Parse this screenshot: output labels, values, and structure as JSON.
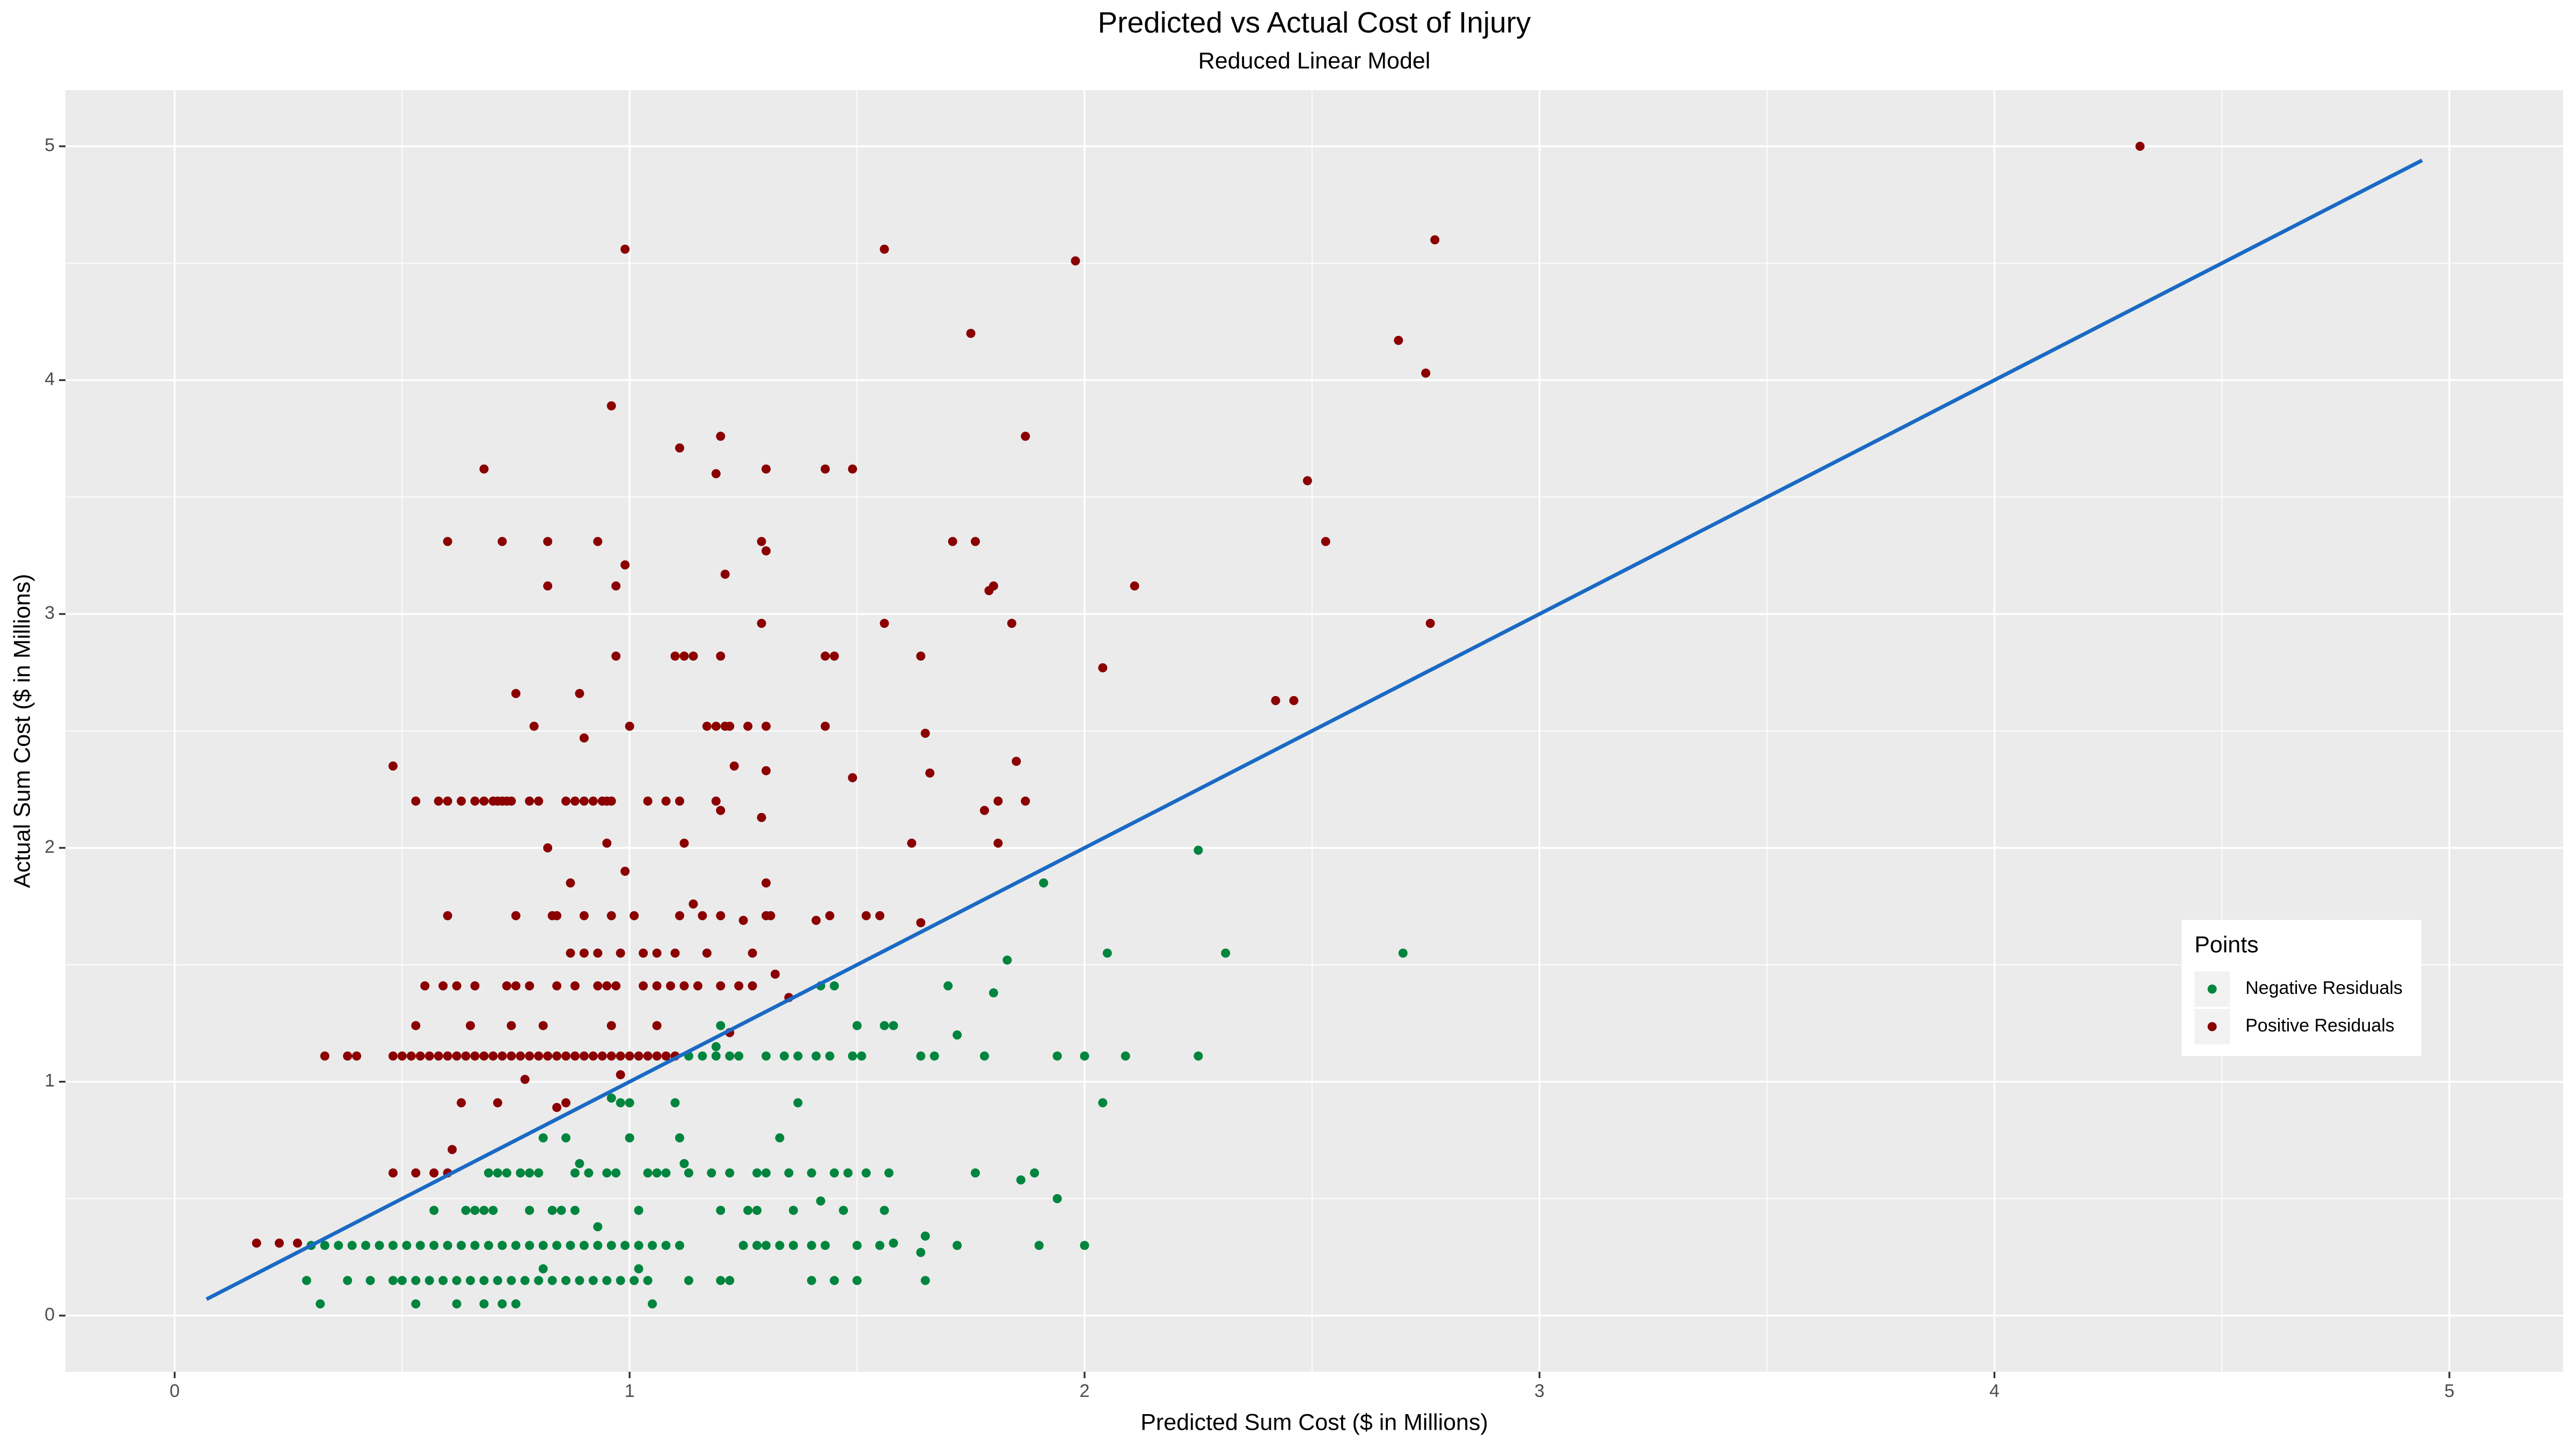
{
  "chart_data": {
    "type": "scatter",
    "title": "Predicted vs Actual Cost of Injury",
    "subtitle": "Reduced Linear Model",
    "x_label": "Predicted Sum Cost ($ in Millions)",
    "y_label": "Actual Sum Cost ($ in Millions)",
    "xlim": [
      -0.24,
      5.25
    ],
    "ylim": [
      -0.24,
      5.24
    ],
    "xticks": [
      0,
      1,
      2,
      3,
      4,
      5
    ],
    "yticks": [
      0,
      1,
      2,
      3,
      4,
      5
    ],
    "grid": true,
    "minor_grid": true,
    "legend_title": "Points",
    "legend_position": "right",
    "reference_line": {
      "color": "#1a6ac4",
      "x": [
        0.07,
        4.94
      ],
      "y": [
        0.07,
        4.94
      ]
    },
    "series": [
      {
        "name": "Negative Residuals",
        "color": "#00853e",
        "x": [
          2.25,
          1.91,
          2.05,
          2.31,
          2.7,
          1.83,
          1.7,
          1.8,
          1.42,
          1.45,
          1.5,
          1.56,
          1.58,
          1.72,
          1.2,
          1.19,
          2.04,
          1.37,
          0.96,
          0.98,
          1.0,
          1.1,
          0.81,
          0.86,
          1.0,
          1.11,
          1.33,
          0.89,
          1.12,
          1.94,
          1.86,
          1.42,
          0.93,
          1.65,
          1.58,
          0.81,
          1.02,
          0.32,
          0.53,
          0.62,
          0.68,
          0.72,
          0.75,
          1.05,
          1.64,
          1.13,
          1.16,
          1.19,
          1.22,
          1.24,
          1.3,
          1.34,
          1.37,
          1.41,
          1.44,
          1.49,
          1.51,
          1.64,
          1.67,
          1.78,
          1.94,
          2.0,
          2.09,
          2.25,
          0.69,
          0.71,
          0.73,
          0.76,
          0.78,
          0.8,
          0.88,
          0.91,
          0.95,
          0.97,
          1.04,
          1.06,
          1.08,
          1.13,
          1.18,
          1.22,
          1.28,
          1.3,
          1.35,
          1.4,
          1.45,
          1.48,
          1.52,
          1.57,
          1.76,
          1.89,
          0.57,
          0.64,
          0.66,
          0.68,
          0.7,
          0.78,
          0.83,
          0.85,
          0.88,
          1.02,
          1.2,
          1.26,
          1.28,
          1.36,
          1.47,
          1.56,
          0.3,
          0.33,
          0.36,
          0.39,
          0.42,
          0.45,
          0.48,
          0.51,
          0.54,
          0.57,
          0.6,
          0.63,
          0.66,
          0.69,
          0.72,
          0.75,
          0.78,
          0.81,
          0.84,
          0.87,
          0.9,
          0.93,
          0.96,
          0.99,
          1.02,
          1.05,
          1.08,
          1.11,
          1.25,
          1.28,
          1.3,
          1.33,
          1.36,
          1.4,
          1.43,
          1.5,
          1.55,
          1.72,
          1.9,
          2.0,
          0.29,
          0.38,
          0.43,
          0.48,
          0.5,
          0.53,
          0.56,
          0.59,
          0.62,
          0.65,
          0.68,
          0.71,
          0.74,
          0.77,
          0.8,
          0.83,
          0.86,
          0.89,
          0.92,
          0.95,
          0.98,
          1.01,
          1.04,
          1.13,
          1.2,
          1.22,
          1.4,
          1.45,
          1.5,
          1.65
        ],
        "y": [
          1.99,
          1.85,
          1.55,
          1.55,
          1.55,
          1.52,
          1.41,
          1.38,
          1.41,
          1.41,
          1.24,
          1.24,
          1.24,
          1.2,
          1.24,
          1.15,
          0.91,
          0.91,
          0.93,
          0.91,
          0.91,
          0.91,
          0.76,
          0.76,
          0.76,
          0.76,
          0.76,
          0.65,
          0.65,
          0.5,
          0.58,
          0.49,
          0.38,
          0.34,
          0.31,
          0.2,
          0.2,
          0.05,
          0.05,
          0.05,
          0.05,
          0.05,
          0.05,
          0.05,
          0.27,
          1.11,
          1.11,
          1.11,
          1.11,
          1.11,
          1.11,
          1.11,
          1.11,
          1.11,
          1.11,
          1.11,
          1.11,
          1.11,
          1.11,
          1.11,
          1.11,
          1.11,
          1.11,
          1.11,
          0.61,
          0.61,
          0.61,
          0.61,
          0.61,
          0.61,
          0.61,
          0.61,
          0.61,
          0.61,
          0.61,
          0.61,
          0.61,
          0.61,
          0.61,
          0.61,
          0.61,
          0.61,
          0.61,
          0.61,
          0.61,
          0.61,
          0.61,
          0.61,
          0.61,
          0.61,
          0.45,
          0.45,
          0.45,
          0.45,
          0.45,
          0.45,
          0.45,
          0.45,
          0.45,
          0.45,
          0.45,
          0.45,
          0.45,
          0.45,
          0.45,
          0.45,
          0.3,
          0.3,
          0.3,
          0.3,
          0.3,
          0.3,
          0.3,
          0.3,
          0.3,
          0.3,
          0.3,
          0.3,
          0.3,
          0.3,
          0.3,
          0.3,
          0.3,
          0.3,
          0.3,
          0.3,
          0.3,
          0.3,
          0.3,
          0.3,
          0.3,
          0.3,
          0.3,
          0.3,
          0.3,
          0.3,
          0.3,
          0.3,
          0.3,
          0.3,
          0.3,
          0.3,
          0.3,
          0.3,
          0.3,
          0.3,
          0.15,
          0.15,
          0.15,
          0.15,
          0.15,
          0.15,
          0.15,
          0.15,
          0.15,
          0.15,
          0.15,
          0.15,
          0.15,
          0.15,
          0.15,
          0.15,
          0.15,
          0.15,
          0.15,
          0.15,
          0.15,
          0.15,
          0.15,
          0.15,
          0.15,
          0.15,
          0.15,
          0.15,
          0.15,
          0.15
        ]
      },
      {
        "name": "Positive Residuals",
        "color": "#8b0000",
        "x": [
          4.32,
          0.99,
          1.56,
          1.98,
          2.77,
          1.75,
          2.69,
          2.75,
          0.96,
          1.2,
          1.87,
          1.11,
          0.68,
          1.19,
          1.3,
          1.43,
          1.49,
          2.49,
          2.53,
          1.3,
          0.99,
          0.82,
          0.97,
          1.21,
          1.79,
          1.8,
          2.11,
          2.04,
          0.75,
          0.89,
          2.42,
          2.46,
          0.9,
          0.48,
          1.23,
          1.3,
          1.49,
          1.66,
          1.85,
          1.65,
          1.29,
          1.2,
          1.78,
          0.82,
          0.95,
          1.12,
          1.62,
          1.81,
          0.99,
          0.87,
          1.3,
          1.14,
          1.64,
          1.25,
          1.41,
          1.32,
          1.35,
          1.22,
          0.63,
          0.71,
          0.77,
          0.86,
          0.98,
          0.61,
          0.18,
          0.23,
          0.27,
          0.33,
          0.38,
          0.4,
          0.48,
          0.84,
          0.6,
          0.72,
          0.82,
          0.93,
          1.29,
          1.71,
          1.76,
          1.29,
          1.56,
          1.84,
          2.76,
          0.97,
          1.1,
          1.12,
          1.14,
          1.2,
          1.43,
          1.45,
          1.64,
          0.79,
          1.0,
          1.17,
          1.19,
          1.21,
          1.22,
          1.26,
          1.3,
          1.43,
          0.53,
          0.58,
          0.6,
          0.63,
          0.66,
          0.68,
          0.7,
          0.71,
          0.72,
          0.73,
          0.74,
          0.78,
          0.8,
          0.86,
          0.88,
          0.9,
          0.92,
          0.94,
          0.95,
          0.96,
          1.04,
          1.08,
          1.11,
          1.19,
          1.81,
          1.87,
          0.6,
          0.75,
          0.83,
          0.84,
          0.9,
          0.96,
          1.01,
          1.11,
          1.16,
          1.2,
          1.3,
          1.31,
          1.44,
          1.52,
          1.55,
          0.87,
          0.9,
          0.93,
          0.98,
          1.03,
          1.06,
          1.1,
          1.17,
          1.27,
          0.55,
          0.59,
          0.62,
          0.66,
          0.73,
          0.75,
          0.78,
          0.84,
          0.88,
          0.93,
          0.95,
          0.97,
          1.03,
          1.06,
          1.09,
          1.12,
          1.15,
          1.2,
          1.24,
          1.27,
          0.53,
          0.65,
          0.74,
          0.81,
          0.96,
          1.06,
          0.5,
          0.52,
          0.54,
          0.56,
          0.58,
          0.6,
          0.62,
          0.64,
          0.66,
          0.68,
          0.7,
          0.72,
          0.74,
          0.76,
          0.78,
          0.8,
          0.82,
          0.84,
          0.86,
          0.88,
          0.9,
          0.92,
          0.94,
          0.96,
          0.98,
          1.0,
          1.02,
          1.04,
          1.06,
          1.08,
          1.1,
          0.48,
          0.53,
          0.57,
          0.6
        ],
        "y": [
          5.0,
          4.56,
          4.56,
          4.51,
          4.6,
          4.2,
          4.17,
          4.03,
          3.89,
          3.76,
          3.76,
          3.71,
          3.62,
          3.6,
          3.62,
          3.62,
          3.62,
          3.57,
          3.31,
          3.27,
          3.21,
          3.12,
          3.12,
          3.17,
          3.1,
          3.12,
          3.12,
          2.77,
          2.66,
          2.66,
          2.63,
          2.63,
          2.47,
          2.35,
          2.35,
          2.33,
          2.3,
          2.32,
          2.37,
          2.49,
          2.13,
          2.16,
          2.16,
          2.0,
          2.02,
          2.02,
          2.02,
          2.02,
          1.9,
          1.85,
          1.85,
          1.76,
          1.68,
          1.69,
          1.69,
          1.46,
          1.36,
          1.21,
          0.91,
          0.91,
          1.01,
          0.91,
          1.03,
          0.71,
          0.31,
          0.31,
          0.31,
          1.11,
          1.11,
          1.11,
          1.11,
          0.89,
          3.31,
          3.31,
          3.31,
          3.31,
          3.31,
          3.31,
          3.31,
          2.96,
          2.96,
          2.96,
          2.96,
          2.82,
          2.82,
          2.82,
          2.82,
          2.82,
          2.82,
          2.82,
          2.82,
          2.52,
          2.52,
          2.52,
          2.52,
          2.52,
          2.52,
          2.52,
          2.52,
          2.52,
          2.2,
          2.2,
          2.2,
          2.2,
          2.2,
          2.2,
          2.2,
          2.2,
          2.2,
          2.2,
          2.2,
          2.2,
          2.2,
          2.2,
          2.2,
          2.2,
          2.2,
          2.2,
          2.2,
          2.2,
          2.2,
          2.2,
          2.2,
          2.2,
          2.2,
          2.2,
          1.71,
          1.71,
          1.71,
          1.71,
          1.71,
          1.71,
          1.71,
          1.71,
          1.71,
          1.71,
          1.71,
          1.71,
          1.71,
          1.71,
          1.71,
          1.55,
          1.55,
          1.55,
          1.55,
          1.55,
          1.55,
          1.55,
          1.55,
          1.55,
          1.41,
          1.41,
          1.41,
          1.41,
          1.41,
          1.41,
          1.41,
          1.41,
          1.41,
          1.41,
          1.41,
          1.41,
          1.41,
          1.41,
          1.41,
          1.41,
          1.41,
          1.41,
          1.41,
          1.41,
          1.24,
          1.24,
          1.24,
          1.24,
          1.24,
          1.24,
          1.11,
          1.11,
          1.11,
          1.11,
          1.11,
          1.11,
          1.11,
          1.11,
          1.11,
          1.11,
          1.11,
          1.11,
          1.11,
          1.11,
          1.11,
          1.11,
          1.11,
          1.11,
          1.11,
          1.11,
          1.11,
          1.11,
          1.11,
          1.11,
          1.11,
          1.11,
          1.11,
          1.11,
          1.11,
          1.11,
          1.11,
          0.61,
          0.61,
          0.61,
          0.61
        ]
      }
    ]
  }
}
